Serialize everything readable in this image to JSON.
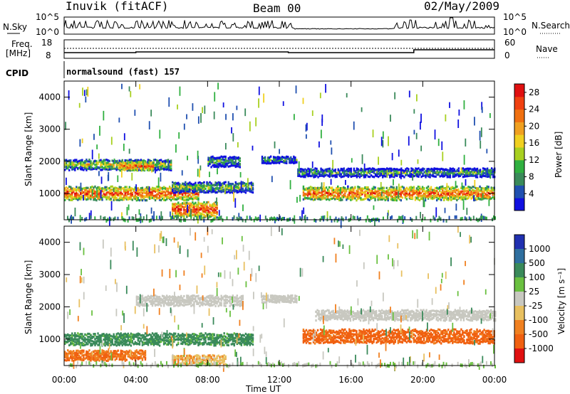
{
  "header": {
    "site": "Inuvik (fitACF)",
    "beam": "Beam 00",
    "date": "02/May/2009"
  },
  "noise_panel": {
    "left_label": "N.Sky",
    "left_ticks": [
      "10^5",
      "10^0"
    ],
    "right_label": "N.Search",
    "right_ticks": [
      "10^5",
      "10^0"
    ]
  },
  "freq_panel": {
    "left_label_1": "Freq.",
    "left_label_2": "[MHz]",
    "left_ticks": [
      "18",
      "8"
    ],
    "right_label": "Nave",
    "right_ticks": [
      "60",
      "0"
    ]
  },
  "cpid": {
    "label": "CPID",
    "value": "normalsound (fast) 157"
  },
  "colors": {
    "power_scale": [
      "#1010e0",
      "#2050b0",
      "#3a8a5a",
      "#30b040",
      "#a8d020",
      "#f0d020",
      "#f0a020",
      "#f07010",
      "#f04010",
      "#e01010"
    ],
    "velocity_scale": [
      "#2030b0",
      "#2f6f9f",
      "#3a8a5a",
      "#6ac040",
      "#c8c8c0",
      "#e8c060",
      "#f08020",
      "#f06010",
      "#e01010"
    ]
  },
  "chart_data": [
    {
      "type": "heatmap",
      "name": "power",
      "title": "",
      "ylabel": "Slant Range [km]",
      "xlabel": "",
      "x_ticks": [
        "00:00",
        "04:00",
        "08:00",
        "12:00",
        "16:00",
        "20:00",
        "00:00"
      ],
      "y_ticks": [
        "1000",
        "2000",
        "3000",
        "4000"
      ],
      "ylim": [
        180,
        4500
      ],
      "colorbar_label": "Power [dB]",
      "colorbar_ticks": [
        "4",
        "8",
        "12",
        "16",
        "20",
        "24",
        "28"
      ],
      "colorbar_range": [
        0,
        30
      ],
      "bands": [
        {
          "t0": 0.0,
          "t1": 7.5,
          "r": 1000,
          "w": 180,
          "v": 26
        },
        {
          "t0": 0.0,
          "t1": 6.0,
          "r": 1900,
          "w": 150,
          "v": 16
        },
        {
          "t0": 3.0,
          "t1": 5.0,
          "r": 1850,
          "w": 120,
          "v": 25
        },
        {
          "t0": 6.0,
          "t1": 8.5,
          "r": 500,
          "w": 220,
          "v": 27
        },
        {
          "t0": 6.0,
          "t1": 10.5,
          "r": 1200,
          "w": 150,
          "v": 14
        },
        {
          "t0": 8.0,
          "t1": 9.8,
          "r": 2000,
          "w": 150,
          "v": 12
        },
        {
          "t0": 13.3,
          "t1": 24.0,
          "r": 1000,
          "w": 180,
          "v": 25
        },
        {
          "t0": 13.0,
          "t1": 24.0,
          "r": 1650,
          "w": 120,
          "v": 11
        },
        {
          "t0": 11.0,
          "t1": 13.0,
          "r": 2050,
          "w": 100,
          "v": 10
        }
      ]
    },
    {
      "type": "heatmap",
      "name": "velocity",
      "title": "",
      "ylabel": "Slant Range [km]",
      "xlabel": "Time UT",
      "x_ticks": [
        "00:00",
        "04:00",
        "08:00",
        "12:00",
        "16:00",
        "20:00",
        "00:00"
      ],
      "y_ticks": [
        "1000",
        "2000",
        "3000",
        "4000"
      ],
      "ylim": [
        180,
        4500
      ],
      "colorbar_label": "Velocity [m s⁻¹]",
      "colorbar_ticks": [
        "1000",
        "500",
        "100",
        "25",
        "-25",
        "-100",
        "-500",
        "-1000"
      ],
      "bands": [
        {
          "t0": 0.0,
          "t1": 10.5,
          "r": 1000,
          "w": 170,
          "v": 100
        },
        {
          "t0": 0.0,
          "t1": 4.5,
          "r": 500,
          "w": 150,
          "v": -300
        },
        {
          "t0": 4.0,
          "t1": 10.0,
          "r": 2200,
          "w": 150,
          "v": 0
        },
        {
          "t0": 11.0,
          "t1": 13.0,
          "r": 2250,
          "w": 100,
          "v": 0
        },
        {
          "t0": 13.3,
          "t1": 24.0,
          "r": 1100,
          "w": 200,
          "v": -400
        },
        {
          "t0": 14.0,
          "t1": 24.0,
          "r": 1750,
          "w": 150,
          "v": 0
        },
        {
          "t0": 6.0,
          "t1": 9.0,
          "r": 350,
          "w": 150,
          "v": -50
        }
      ]
    }
  ]
}
